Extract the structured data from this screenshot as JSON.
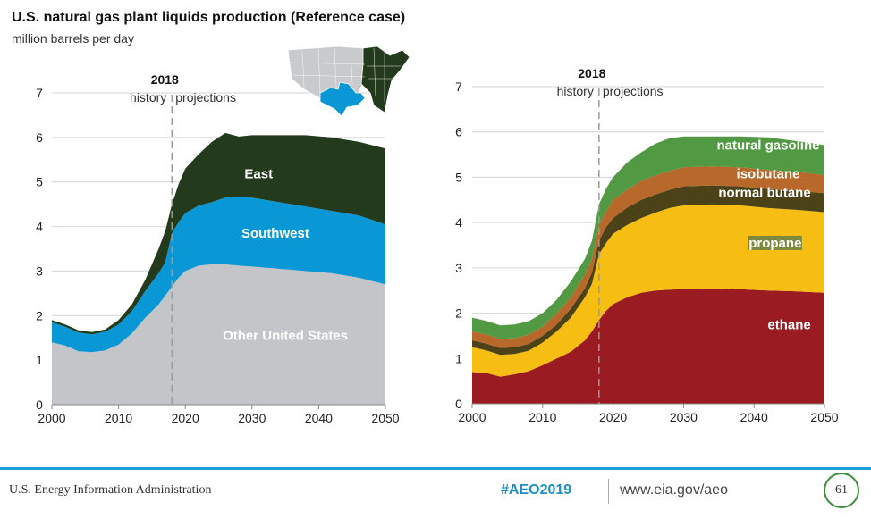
{
  "title": "U.S. natural gas plant liquids production (Reference case)",
  "subtitle": "million barrels per day",
  "footer": {
    "agency": "U.S. Energy Information Administration",
    "hashtag": "#AEO2019",
    "url": "www.eia.gov/aeo",
    "page": "61"
  },
  "colors": {
    "east": "#243a1d",
    "southwest": "#0a97d6",
    "other": "#c3c5c8",
    "ethane": "#9a1c22",
    "propane": "#f6bd12",
    "normal_butane": "#4c4217",
    "isobutane": "#b7682a",
    "natural_gasoline": "#519943"
  },
  "chart_data": [
    {
      "type": "area",
      "stacked": true,
      "ylim": [
        0,
        7
      ],
      "xlim": [
        2000,
        2050
      ],
      "xticks": [
        2000,
        2010,
        2020,
        2030,
        2040,
        2050
      ],
      "yticks": [
        0,
        1,
        2,
        3,
        4,
        5,
        6,
        7
      ],
      "grid": "horizontal",
      "divider": {
        "x": 2018,
        "year_label": "2018",
        "left_label": "history",
        "right_label": "projections"
      },
      "x": [
        2000,
        2002,
        2004,
        2006,
        2008,
        2010,
        2012,
        2014,
        2016,
        2017,
        2018,
        2019,
        2020,
        2022,
        2024,
        2026,
        2028,
        2030,
        2034,
        2038,
        2042,
        2046,
        2050
      ],
      "series": [
        {
          "name": "Other United States",
          "values": [
            1.4,
            1.33,
            1.2,
            1.18,
            1.22,
            1.35,
            1.6,
            1.95,
            2.25,
            2.45,
            2.65,
            2.85,
            3.0,
            3.12,
            3.15,
            3.15,
            3.12,
            3.1,
            3.05,
            3.0,
            2.95,
            2.85,
            2.7
          ]
        },
        {
          "name": "Southwest",
          "values": [
            0.45,
            0.42,
            0.42,
            0.4,
            0.42,
            0.45,
            0.5,
            0.6,
            0.7,
            0.75,
            1.2,
            1.25,
            1.3,
            1.35,
            1.4,
            1.5,
            1.55,
            1.55,
            1.5,
            1.45,
            1.4,
            1.4,
            1.35
          ]
        },
        {
          "name": "East",
          "values": [
            0.05,
            0.05,
            0.05,
            0.05,
            0.05,
            0.1,
            0.15,
            0.25,
            0.55,
            0.7,
            0.65,
            0.85,
            1.0,
            1.15,
            1.35,
            1.45,
            1.35,
            1.4,
            1.5,
            1.6,
            1.65,
            1.65,
            1.7
          ]
        }
      ]
    },
    {
      "type": "area",
      "stacked": true,
      "ylim": [
        0,
        7
      ],
      "xlim": [
        2000,
        2050
      ],
      "xticks": [
        2000,
        2010,
        2020,
        2030,
        2040,
        2050
      ],
      "yticks": [
        0,
        1,
        2,
        3,
        4,
        5,
        6,
        7
      ],
      "grid": "horizontal",
      "divider": {
        "x": 2018,
        "year_label": "2018",
        "left_label": "history",
        "right_label": "projections"
      },
      "x": [
        2000,
        2002,
        2004,
        2006,
        2008,
        2010,
        2012,
        2014,
        2016,
        2017,
        2018,
        2019,
        2020,
        2022,
        2024,
        2026,
        2028,
        2030,
        2034,
        2038,
        2042,
        2046,
        2050
      ],
      "series": [
        {
          "name": "ethane",
          "values": [
            0.7,
            0.68,
            0.6,
            0.65,
            0.72,
            0.85,
            1.0,
            1.15,
            1.4,
            1.6,
            1.85,
            2.05,
            2.2,
            2.35,
            2.45,
            2.5,
            2.52,
            2.53,
            2.55,
            2.53,
            2.5,
            2.48,
            2.45
          ]
        },
        {
          "name": "propane",
          "values": [
            0.55,
            0.5,
            0.48,
            0.45,
            0.45,
            0.5,
            0.6,
            0.75,
            0.95,
            1.05,
            1.45,
            1.5,
            1.55,
            1.6,
            1.65,
            1.72,
            1.8,
            1.85,
            1.85,
            1.85,
            1.82,
            1.8,
            1.78
          ]
        },
        {
          "name": "normal butane",
          "values": [
            0.15,
            0.15,
            0.15,
            0.15,
            0.15,
            0.15,
            0.15,
            0.2,
            0.2,
            0.25,
            0.3,
            0.35,
            0.35,
            0.38,
            0.4,
            0.4,
            0.4,
            0.42,
            0.42,
            0.42,
            0.42,
            0.42,
            0.42
          ]
        },
        {
          "name": "isobutane",
          "values": [
            0.2,
            0.2,
            0.2,
            0.2,
            0.2,
            0.2,
            0.25,
            0.25,
            0.3,
            0.3,
            0.35,
            0.35,
            0.4,
            0.4,
            0.42,
            0.42,
            0.42,
            0.42,
            0.42,
            0.42,
            0.42,
            0.42,
            0.4
          ]
        },
        {
          "name": "natural gasoline",
          "values": [
            0.3,
            0.3,
            0.3,
            0.3,
            0.3,
            0.3,
            0.3,
            0.35,
            0.35,
            0.4,
            0.45,
            0.5,
            0.5,
            0.6,
            0.63,
            0.7,
            0.72,
            0.68,
            0.66,
            0.68,
            0.72,
            0.68,
            0.66
          ]
        }
      ]
    }
  ]
}
